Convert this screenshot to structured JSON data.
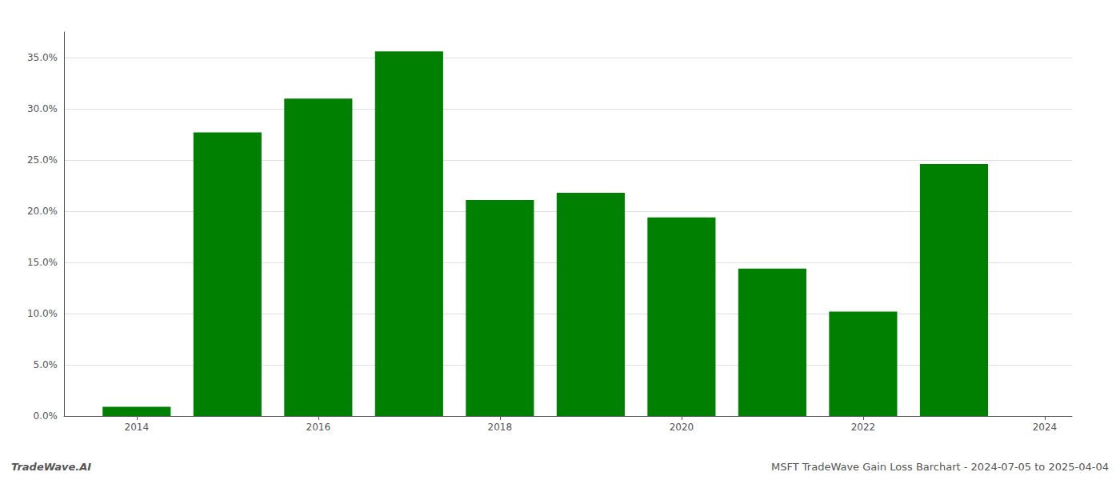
{
  "chart_data": {
    "type": "bar",
    "x": [
      2014,
      2015,
      2016,
      2017,
      2018,
      2019,
      2020,
      2021,
      2022,
      2023
    ],
    "values": [
      0.009,
      0.277,
      0.31,
      0.356,
      0.211,
      0.218,
      0.194,
      0.144,
      0.102,
      0.246
    ],
    "color": "#008000",
    "xlim": [
      2013.2,
      2024.3
    ],
    "xticks": [
      2014,
      2016,
      2018,
      2020,
      2022,
      2024
    ],
    "ylim": [
      0.0,
      0.375
    ],
    "yticks": [
      {
        "value": 0.0,
        "label": "0.0%"
      },
      {
        "value": 0.05,
        "label": "5.0%"
      },
      {
        "value": 0.1,
        "label": "10.0%"
      },
      {
        "value": 0.15,
        "label": "15.0%"
      },
      {
        "value": 0.2,
        "label": "20.0%"
      },
      {
        "value": 0.25,
        "label": "25.0%"
      },
      {
        "value": 0.3,
        "label": "30.0%"
      },
      {
        "value": 0.35,
        "label": "35.0%"
      }
    ],
    "grid": true,
    "annotations": [
      "TradeWave.AI",
      "MSFT TradeWave Gain Loss Barchart - 2024-07-05 to 2025-04-04"
    ]
  }
}
